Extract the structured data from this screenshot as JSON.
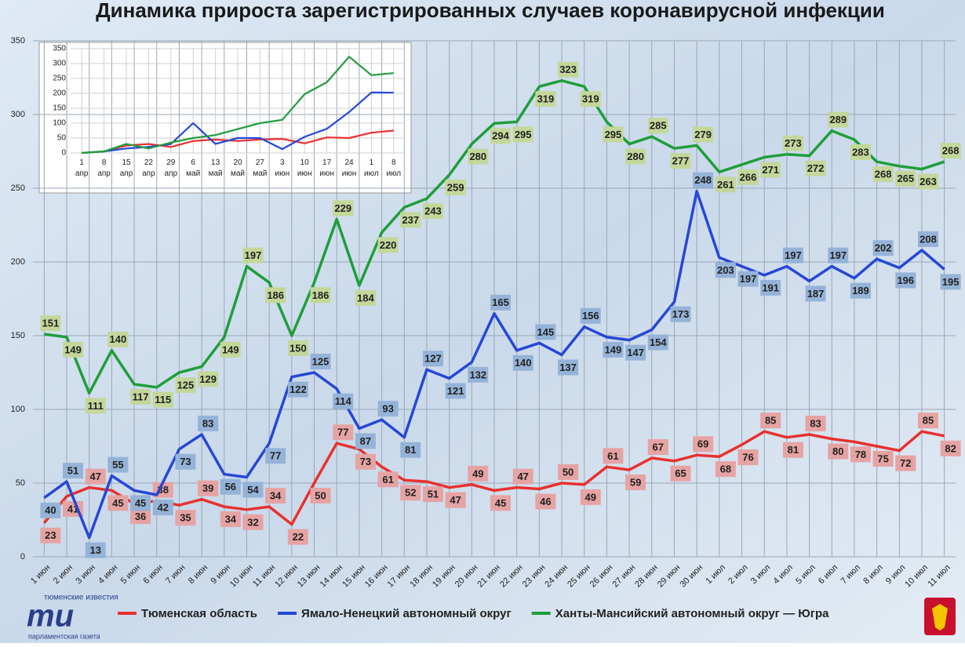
{
  "chart_data": [
    {
      "type": "line",
      "title": "Динамика прироста зарегистрированных случаев коронавирусной инфекции",
      "categories": [
        "1 июн",
        "2 июн",
        "3 июн",
        "4 июн",
        "5 июн",
        "6 июн",
        "7 июн",
        "8 июн",
        "9 июн",
        "10 июн",
        "11 июн",
        "12 июн",
        "13 июн",
        "14 июн",
        "15 июн",
        "16 июн",
        "17 июн",
        "18 июн",
        "19 июн",
        "20 июн",
        "21 июн",
        "22 июн",
        "23 июн",
        "24 июн",
        "25 июн",
        "26 июн",
        "27 июн",
        "28 июн",
        "29 июн",
        "30 июн",
        "1 июл",
        "2 июл",
        "3 июл",
        "4 июл",
        "5 июл",
        "6 июл",
        "7 июл",
        "8 июл",
        "9 июл",
        "10 июл",
        "11 июл"
      ],
      "series": [
        {
          "name": "Тюменская область",
          "color": "#e8312f",
          "values": [
            23,
            41,
            47,
            45,
            36,
            38,
            35,
            39,
            34,
            32,
            34,
            22,
            50,
            77,
            73,
            61,
            52,
            51,
            47,
            49,
            45,
            47,
            46,
            50,
            49,
            61,
            59,
            67,
            65,
            69,
            68,
            76,
            85,
            81,
            83,
            80,
            78,
            75,
            72,
            85,
            82
          ]
        },
        {
          "name": "Ямало-Ненецкий автономный округ",
          "color": "#2747d6",
          "values": [
            40,
            51,
            13,
            55,
            45,
            42,
            73,
            83,
            56,
            54,
            77,
            122,
            125,
            114,
            87,
            93,
            81,
            127,
            121,
            132,
            165,
            140,
            145,
            137,
            156,
            149,
            147,
            154,
            173,
            248,
            203,
            197,
            191,
            197,
            187,
            197,
            189,
            202,
            196,
            208,
            195
          ]
        },
        {
          "name": "Ханты-Мансийский автономный округ — Югра",
          "color": "#1f9e3a",
          "values": [
            151,
            149,
            111,
            140,
            117,
            115,
            125,
            129,
            149,
            197,
            186,
            150,
            186,
            229,
            184,
            220,
            237,
            243,
            259,
            280,
            294,
            295,
            319,
            323,
            319,
            295,
            280,
            285,
            277,
            279,
            261,
            266,
            271,
            273,
            272,
            289,
            283,
            268,
            265,
            263,
            268
          ]
        }
      ],
      "ylim": [
        0,
        350
      ],
      "yticks": [
        0,
        50,
        100,
        150,
        200,
        250,
        300,
        350
      ],
      "grid": true,
      "legend": "bottom"
    },
    {
      "type": "line",
      "categories": [
        "1 апр",
        "8 апр",
        "15 апр",
        "22 апр",
        "29 апр",
        "6 май",
        "13 май",
        "20 май",
        "27 май",
        "3 июн",
        "10 июн",
        "17 июн",
        "24 июн",
        "1 июл",
        "8 июл"
      ],
      "series": [
        {
          "color": "#e8312f",
          "values": [
            0,
            5,
            25,
            30,
            20,
            40,
            45,
            40,
            45,
            47,
            32,
            52,
            50,
            68,
            75
          ]
        },
        {
          "color": "#2747d6",
          "values": [
            0,
            5,
            15,
            20,
            30,
            100,
            30,
            50,
            50,
            13,
            54,
            81,
            137,
            203,
            202
          ]
        },
        {
          "color": "#1f9e3a",
          "values": [
            0,
            5,
            30,
            15,
            35,
            50,
            60,
            80,
            100,
            111,
            197,
            237,
            323,
            261,
            268
          ]
        }
      ],
      "ylim": [
        0,
        350
      ],
      "yticks": [
        0,
        50,
        100,
        150,
        200,
        250,
        300,
        350
      ],
      "grid": true
    }
  ],
  "branding": {
    "left_top": "тюменские известия",
    "left_mark": "ти",
    "left_bottom": "парламентская газета"
  }
}
